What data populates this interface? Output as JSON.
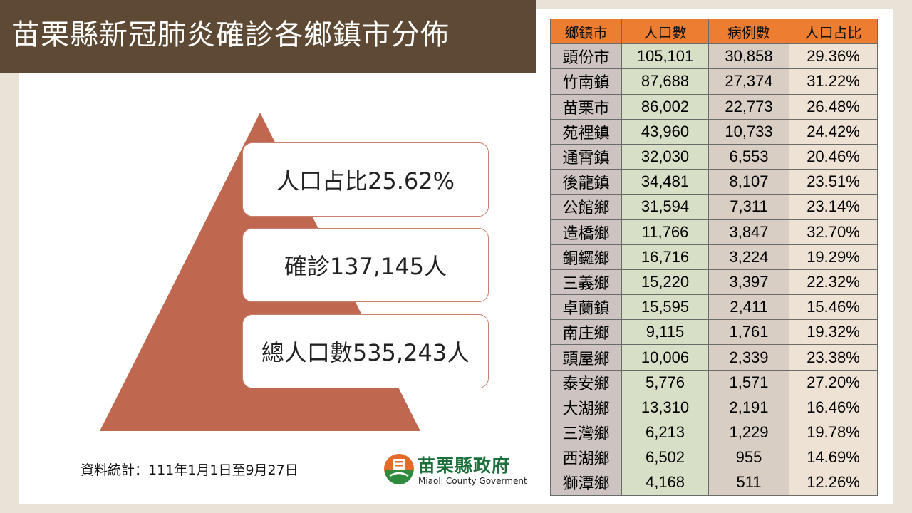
{
  "title": "苗栗縣新冠肺炎確診各鄉鎮市分佈",
  "pyramid": {
    "ratio": "人口占比25.62%",
    "cases": "確診137,145人",
    "population": "總人口數535,243人"
  },
  "footnote": "資料統計：111年1月1日至9月27日",
  "logo": {
    "name_cn": "苗栗縣政府",
    "name_en": "Miaoli County Goverment",
    "icon": "county-emblem-icon"
  },
  "colors": {
    "title_bar": "#5e4a34",
    "pyramid": "#c0674f",
    "table_header": "#ed7d31",
    "col_name": "#cdc3c1",
    "col_population": "#d7dfc6",
    "col_cases": "#d9cec3",
    "col_ratio": "#ede2d4"
  },
  "table": {
    "headers": [
      "鄉鎮市",
      "人口數",
      "病例數",
      "人口占比"
    ],
    "rows": [
      [
        "頭份市",
        "105,101",
        "30,858",
        "29.36%"
      ],
      [
        "竹南鎮",
        "87,688",
        "27,374",
        "31.22%"
      ],
      [
        "苗栗市",
        "86,002",
        "22,773",
        "26.48%"
      ],
      [
        "苑裡鎮",
        "43,960",
        "10,733",
        "24.42%"
      ],
      [
        "通霄鎮",
        "32,030",
        "6,553",
        "20.46%"
      ],
      [
        "後龍鎮",
        "34,481",
        "8,107",
        "23.51%"
      ],
      [
        "公館鄉",
        "31,594",
        "7,311",
        "23.14%"
      ],
      [
        "造橋鄉",
        "11,766",
        "3,847",
        "32.70%"
      ],
      [
        "銅鑼鄉",
        "16,716",
        "3,224",
        "19.29%"
      ],
      [
        "三義鄉",
        "15,220",
        "3,397",
        "22.32%"
      ],
      [
        "卓蘭鎮",
        "15,595",
        "2,411",
        "15.46%"
      ],
      [
        "南庄鄉",
        "9,115",
        "1,761",
        "19.32%"
      ],
      [
        "頭屋鄉",
        "10,006",
        "2,339",
        "23.38%"
      ],
      [
        "泰安鄉",
        "5,776",
        "1,571",
        "27.20%"
      ],
      [
        "大湖鄉",
        "13,310",
        "2,191",
        "16.46%"
      ],
      [
        "三灣鄉",
        "6,213",
        "1,229",
        "19.78%"
      ],
      [
        "西湖鄉",
        "6,502",
        "955",
        "14.69%"
      ],
      [
        "獅潭鄉",
        "4,168",
        "511",
        "12.26%"
      ]
    ]
  }
}
